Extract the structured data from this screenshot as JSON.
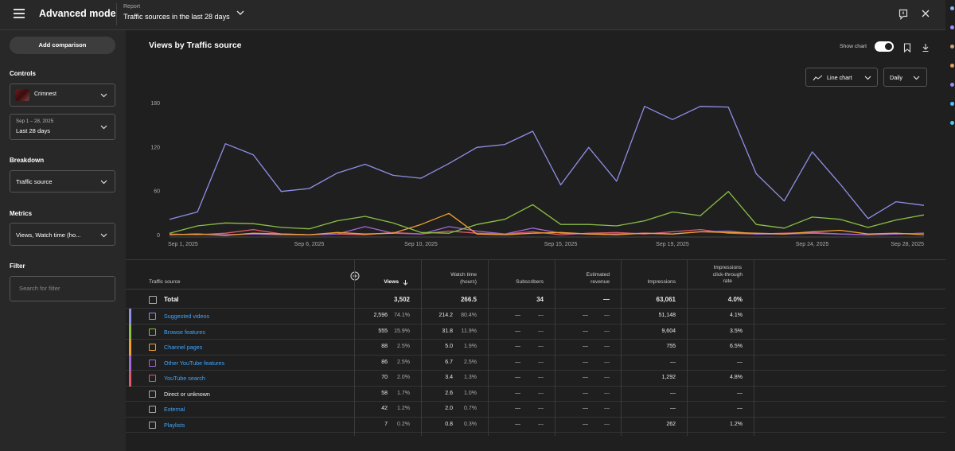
{
  "header": {
    "app_title": "Advanced mode",
    "report_label": "Report",
    "report_title": "Traffic sources in the last 28 days"
  },
  "sidebar": {
    "add_comparison": "Add comparison",
    "controls_label": "Controls",
    "channel": "Crimnest",
    "date_range_small": "Sep 1 – 28, 2025",
    "date_range": "Last 28 days",
    "breakdown_label": "Breakdown",
    "breakdown_value": "Traffic source",
    "metrics_label": "Metrics",
    "metrics_value": "Views, Watch time (ho...",
    "filter_label": "Filter",
    "filter_placeholder": "Search for filter"
  },
  "chart_panel": {
    "title": "Views by Traffic source",
    "show_chart_label": "Show chart",
    "chart_type": "Line chart",
    "granularity": "Daily"
  },
  "chart_data": {
    "type": "line",
    "title": "Views by Traffic source",
    "x_tick_labels": [
      "Sep 1, 2025",
      "Sep 6, 2025",
      "Sep 10, 2025",
      "Sep 15, 2025",
      "Sep 19, 2025",
      "Sep 24, 2025",
      "Sep 28, 2025"
    ],
    "x_tick_days": [
      1,
      6,
      10,
      15,
      19,
      24,
      28
    ],
    "y_ticks": [
      0,
      60,
      120,
      180
    ],
    "ylim": [
      0,
      180
    ],
    "x": [
      1,
      2,
      3,
      4,
      5,
      6,
      7,
      8,
      9,
      10,
      11,
      12,
      13,
      14,
      15,
      16,
      17,
      18,
      19,
      20,
      21,
      22,
      23,
      24,
      25,
      26,
      27,
      28
    ],
    "series": [
      {
        "name": "Suggested videos",
        "color": "#8f8fe8",
        "values": [
          22,
          32,
          125,
          110,
          60,
          64,
          85,
          97,
          82,
          78,
          98,
          120,
          124,
          142,
          69,
          120,
          74,
          176,
          158,
          176,
          175,
          84,
          47,
          114,
          70,
          23,
          46,
          41
        ]
      },
      {
        "name": "Browse features",
        "color": "#8bbf45",
        "values": [
          3,
          13,
          17,
          16,
          11,
          9,
          20,
          26,
          17,
          4,
          3,
          15,
          22,
          42,
          15,
          15,
          13,
          20,
          32,
          27,
          60,
          15,
          10,
          25,
          22,
          11,
          21,
          28
        ]
      },
      {
        "name": "Channel pages",
        "color": "#f0a030",
        "values": [
          1,
          2,
          0,
          3,
          2,
          1,
          4,
          2,
          3,
          15,
          30,
          2,
          1,
          3,
          4,
          2,
          1,
          3,
          2,
          5,
          4,
          3,
          2,
          5,
          7,
          2,
          3,
          1
        ]
      },
      {
        "name": "Other YouTube features",
        "color": "#a068d8",
        "values": [
          1,
          2,
          1,
          2,
          1,
          1,
          2,
          12,
          3,
          2,
          12,
          6,
          2,
          10,
          3,
          2,
          2,
          3,
          2,
          5,
          6,
          2,
          2,
          3,
          2,
          1,
          2,
          3
        ]
      },
      {
        "name": "YouTube search",
        "color": "#e05a6e",
        "values": [
          2,
          1,
          3,
          8,
          2,
          1,
          2,
          1,
          4,
          2,
          6,
          3,
          2,
          5,
          1,
          3,
          4,
          2,
          5,
          8,
          3,
          2,
          3,
          4,
          2,
          1,
          2,
          3
        ]
      }
    ]
  },
  "table": {
    "headers": {
      "source": "Traffic source",
      "views": "Views",
      "watch_time_1": "Watch time",
      "watch_time_2": "(hours)",
      "subscribers": "Subscribers",
      "revenue_1": "Estimated",
      "revenue_2": "revenue",
      "impressions": "Impressions",
      "ctr_1": "Impressions",
      "ctr_2": "click-through",
      "ctr_3": "rate"
    },
    "total": {
      "label": "Total",
      "views": "3,502",
      "watch": "266.5",
      "subs": "34",
      "revenue": "—",
      "impressions": "63,061",
      "ctr": "4.0%"
    },
    "rows": [
      {
        "name": "Suggested videos",
        "views": "2,596",
        "views_pct": "74.1%",
        "watch": "214.2",
        "watch_pct": "80.4%",
        "subs": "—",
        "subs_pct": "—",
        "rev": "—",
        "rev_pct": "—",
        "impressions": "51,148",
        "ctr": "4.1%"
      },
      {
        "name": "Browse features",
        "views": "555",
        "views_pct": "15.9%",
        "watch": "31.8",
        "watch_pct": "11.9%",
        "subs": "—",
        "subs_pct": "—",
        "rev": "—",
        "rev_pct": "—",
        "impressions": "9,604",
        "ctr": "3.5%"
      },
      {
        "name": "Channel pages",
        "views": "88",
        "views_pct": "2.5%",
        "watch": "5.0",
        "watch_pct": "1.9%",
        "subs": "—",
        "subs_pct": "—",
        "rev": "—",
        "rev_pct": "—",
        "impressions": "755",
        "ctr": "6.5%"
      },
      {
        "name": "Other YouTube features",
        "views": "86",
        "views_pct": "2.5%",
        "watch": "6.7",
        "watch_pct": "2.5%",
        "subs": "—",
        "subs_pct": "—",
        "rev": "—",
        "rev_pct": "—",
        "impressions": "—",
        "ctr": "—"
      },
      {
        "name": "YouTube search",
        "views": "70",
        "views_pct": "2.0%",
        "watch": "3.4",
        "watch_pct": "1.3%",
        "subs": "—",
        "subs_pct": "—",
        "rev": "—",
        "rev_pct": "—",
        "impressions": "1,292",
        "ctr": "4.8%"
      },
      {
        "name": "Direct or unknown",
        "views": "58",
        "views_pct": "1.7%",
        "watch": "2.6",
        "watch_pct": "1.0%",
        "subs": "—",
        "subs_pct": "—",
        "rev": "—",
        "rev_pct": "—",
        "impressions": "—",
        "ctr": "—"
      },
      {
        "name": "External",
        "views": "42",
        "views_pct": "1.2%",
        "watch": "2.0",
        "watch_pct": "0.7%",
        "subs": "—",
        "subs_pct": "—",
        "rev": "—",
        "rev_pct": "—",
        "impressions": "—",
        "ctr": "—"
      },
      {
        "name": "Playlists",
        "views": "7",
        "views_pct": "0.2%",
        "watch": "0.8",
        "watch_pct": "0.3%",
        "subs": "—",
        "subs_pct": "—",
        "rev": "—",
        "rev_pct": "—",
        "impressions": "262",
        "ctr": "1.2%"
      }
    ]
  },
  "colors": {
    "suggested": "#8f8fe8",
    "browse": "#8bbf45",
    "channel": "#f0a030",
    "other": "#a068d8",
    "search": "#e05a6e",
    "link": "#3ea6ff"
  }
}
